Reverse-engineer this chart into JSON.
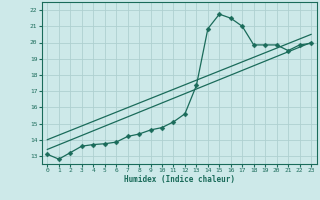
{
  "xlabel": "Humidex (Indice chaleur)",
  "background_color": "#cde9e9",
  "grid_color": "#afd0d0",
  "line_color": "#1a6b5a",
  "xlim": [
    -0.5,
    23.5
  ],
  "ylim": [
    12.5,
    22.5
  ],
  "yticks": [
    13,
    14,
    15,
    16,
    17,
    18,
    19,
    20,
    21,
    22
  ],
  "xticks": [
    0,
    1,
    2,
    3,
    4,
    5,
    6,
    7,
    8,
    9,
    10,
    11,
    12,
    13,
    14,
    15,
    16,
    17,
    18,
    19,
    20,
    21,
    22,
    23
  ],
  "line1_x": [
    0,
    1,
    2,
    3,
    4,
    5,
    6,
    7,
    8,
    9,
    10,
    11,
    12,
    13,
    14,
    15,
    16,
    17,
    18,
    19,
    20,
    21,
    22,
    23
  ],
  "line1_y": [
    13.1,
    12.8,
    13.2,
    13.6,
    13.7,
    13.75,
    13.85,
    14.2,
    14.35,
    14.6,
    14.75,
    15.1,
    15.6,
    17.35,
    20.85,
    21.75,
    21.5,
    21.0,
    19.85,
    19.85,
    19.85,
    19.5,
    19.85,
    19.95
  ],
  "line2_x": [
    0,
    23
  ],
  "line2_y": [
    13.4,
    20.0
  ],
  "line3_x": [
    0,
    23
  ],
  "line3_y": [
    14.0,
    20.5
  ],
  "markersize": 2.5,
  "linewidth": 0.9,
  "tick_fontsize": 4.5,
  "xlabel_fontsize": 5.5
}
